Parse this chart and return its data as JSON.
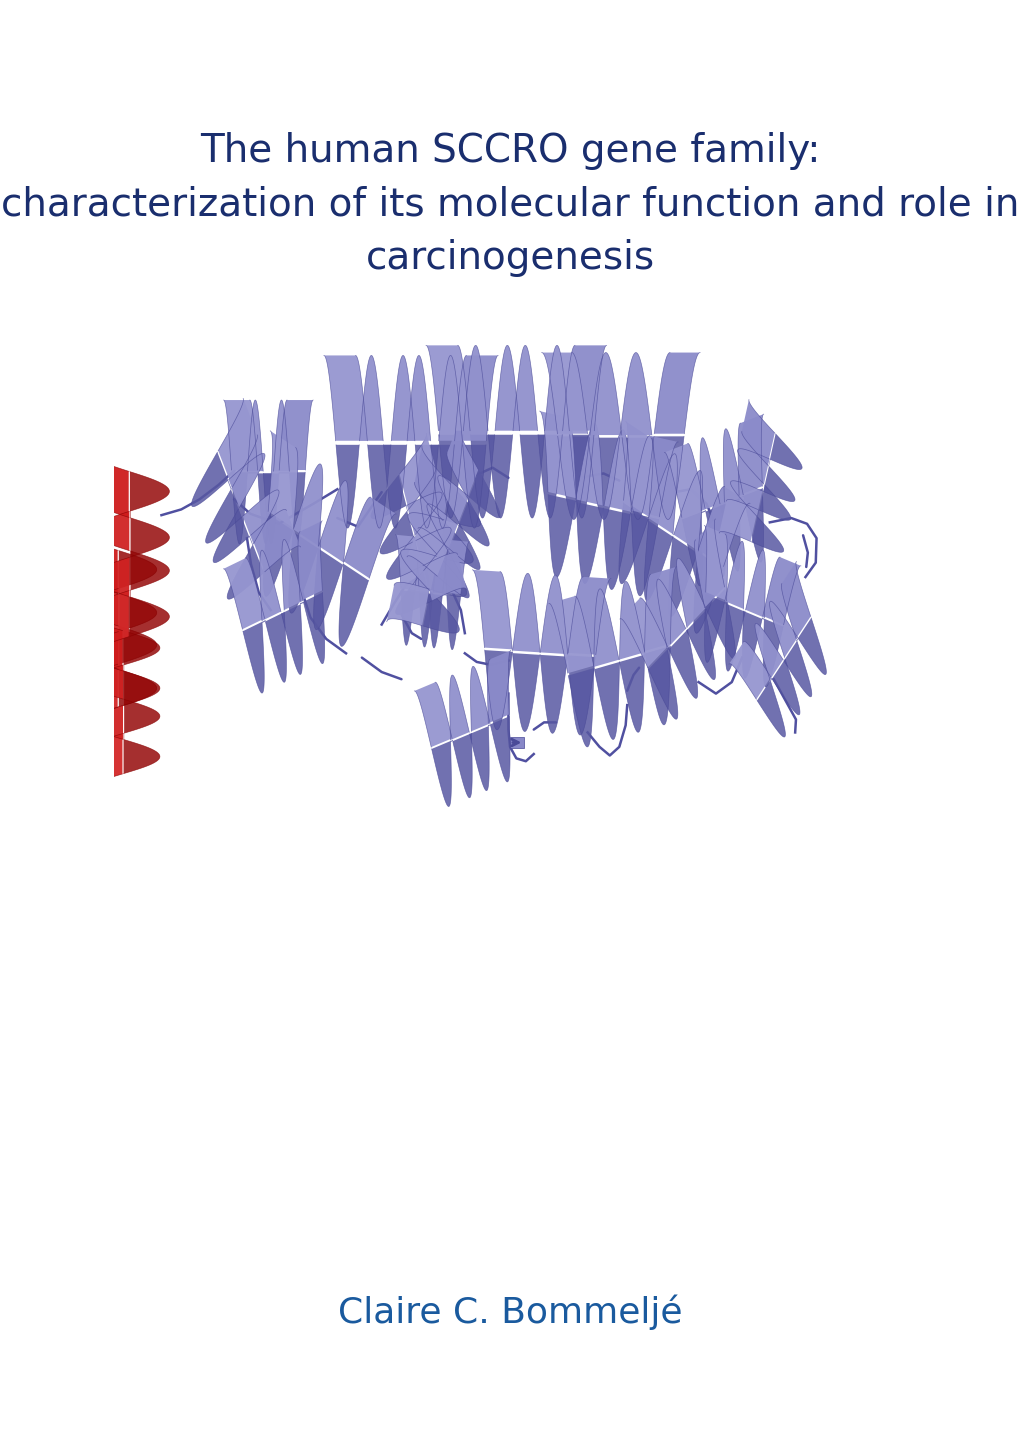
{
  "title_line1": "The human SCCRO gene family:",
  "title_line2": "characterization of its molecular function and role in",
  "title_line3": "carcinogenesis",
  "author": "Claire C. Bommeljé",
  "title_color": "#1a2e6e",
  "author_color": "#1a5a9e",
  "background_color": "#ffffff",
  "title_fontsize": 28,
  "author_fontsize": 26,
  "fig_width": 10.2,
  "fig_height": 14.39,
  "blue_face": "#8888c8",
  "blue_light": "#aaaadc",
  "blue_dark": "#4a4a98",
  "blue_shadow": "#6060a8",
  "red_face": "#cc1818",
  "red_dark": "#880000",
  "red_light": "#dd4040",
  "loop_color": "#5050a0"
}
